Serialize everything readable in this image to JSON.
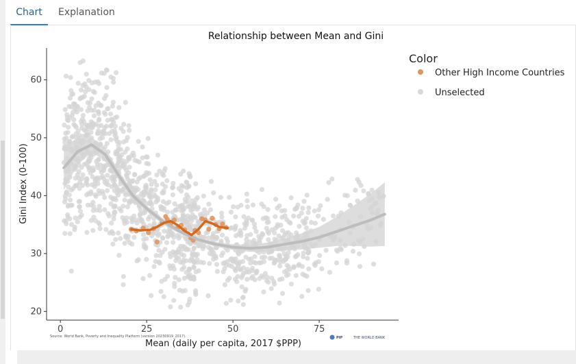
{
  "tabs": [
    {
      "label": "Chart",
      "active": true
    },
    {
      "label": "Explanation",
      "active": false
    }
  ],
  "chart_data": {
    "type": "scatter",
    "title": "Relationship between Mean and Gini",
    "xlabel": "Mean (daily per capita, 2017 $PPP)",
    "ylabel": "Gini Index (0-100)",
    "xlim": [
      -4,
      98
    ],
    "ylim": [
      18.5,
      65.5
    ],
    "xticks": [
      0,
      25,
      50,
      75
    ],
    "yticks": [
      20,
      30,
      40,
      50,
      60
    ],
    "grid": false,
    "legend": {
      "title": "Color",
      "placement": "right",
      "entries": [
        {
          "label": "Other High Income Countries",
          "color": "#e0955f"
        },
        {
          "label": "Unselected",
          "color": "#d9d9d9"
        }
      ]
    },
    "source": "Source: World Bank, Poverty and Inequality Platform (version 20230919_2017).",
    "brand": {
      "pip": "PIP",
      "org": "THE WORLD BANK"
    },
    "colors": {
      "unselected_points": "#d4d4d4",
      "highlight_points": "#e0955f",
      "unselected_trend": "#bdbdbd",
      "confidence_band": "#d7d7d7",
      "highlight_trend": "#d2691e"
    },
    "series": [
      {
        "name": "Unselected",
        "note": "about 1,500 grey points concentrated between 20 and 60 Gini; densest for means 2–15 (Gini 35–60) and 25–70 (Gini 25–40)",
        "trend": {
          "x": [
            1,
            5,
            9,
            13,
            17,
            21,
            25,
            30,
            35,
            40,
            45,
            50,
            55,
            60,
            65,
            70,
            75,
            80,
            85,
            90,
            94
          ],
          "y": [
            44.8,
            47.6,
            48.8,
            47.1,
            43.4,
            40.0,
            37.8,
            35.4,
            33.7,
            32.4,
            31.6,
            31.1,
            30.9,
            31.1,
            31.6,
            32.1,
            32.8,
            33.8,
            34.8,
            35.8,
            36.8
          ]
        },
        "band_upper": [
          48.6,
          49.9,
          50.1,
          48.2,
          44.2,
          40.7,
          38.3,
          35.9,
          34.1,
          32.8,
          32.0,
          31.6,
          31.5,
          31.9,
          32.6,
          33.5,
          34.6,
          36.3,
          38.3,
          40.4,
          42.3
        ],
        "band_lower": [
          41.0,
          45.3,
          47.5,
          46.0,
          42.6,
          39.3,
          37.3,
          34.9,
          33.3,
          32.0,
          31.2,
          30.6,
          30.3,
          30.3,
          30.6,
          30.7,
          31.0,
          31.3,
          31.3,
          31.2,
          31.3
        ]
      },
      {
        "name": "Other High Income Countries",
        "x": [
          20.5,
          22,
          24,
          25.5,
          27,
          28,
          29.5,
          30.5,
          31,
          32,
          33,
          34,
          35,
          36,
          37,
          37.8,
          38.5,
          39,
          40,
          41,
          42,
          43,
          44,
          45,
          46,
          47,
          48
        ],
        "y": [
          34.2,
          33.9,
          34.4,
          33.6,
          34.3,
          32.0,
          35.3,
          36.4,
          35.9,
          35.2,
          35.8,
          34.4,
          34.9,
          34.1,
          33.4,
          32.7,
          32.3,
          34.0,
          33.6,
          36.0,
          35.8,
          34.2,
          36.1,
          35.0,
          34.3,
          35.1,
          34.5
        ],
        "trend": {
          "x": [
            20.5,
            23,
            26,
            28,
            30,
            32,
            34,
            36,
            38,
            40,
            42,
            44,
            46,
            48.5
          ],
          "y": [
            34.2,
            34.0,
            34.1,
            34.6,
            35.3,
            35.6,
            34.9,
            33.9,
            33.2,
            34.2,
            35.6,
            35.2,
            34.6,
            34.4
          ]
        }
      }
    ]
  }
}
